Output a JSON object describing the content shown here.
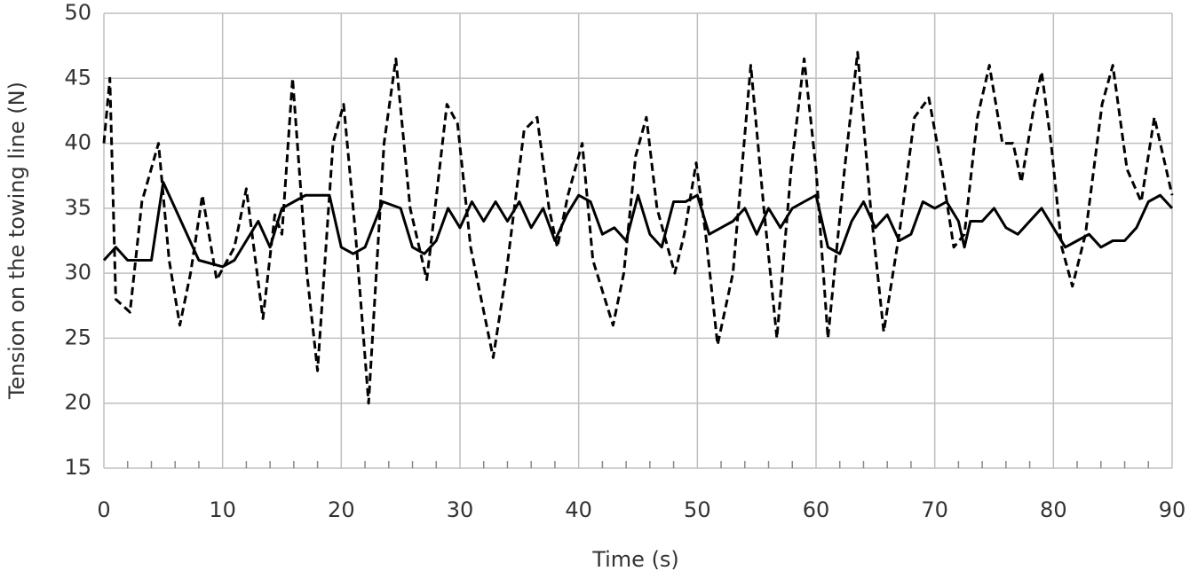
{
  "chart_data": {
    "type": "line",
    "xlabel": "Time (s)",
    "ylabel": "Tension on the towing line (N)",
    "xlim": [
      0,
      90
    ],
    "ylim": [
      15,
      50
    ],
    "xticks": [
      0,
      10,
      20,
      30,
      40,
      50,
      60,
      70,
      80,
      90
    ],
    "xminorticks": [
      2,
      4,
      6,
      8,
      12,
      14,
      16,
      18,
      22,
      24,
      26,
      28,
      32,
      34,
      36,
      38,
      42,
      44,
      46,
      48,
      52,
      54,
      56,
      58,
      62,
      64,
      66,
      68,
      72,
      74,
      76,
      78,
      82,
      84,
      86,
      88
    ],
    "yticks": [
      15,
      20,
      25,
      30,
      35,
      40,
      45,
      50
    ],
    "grid": true,
    "series": [
      {
        "color": "#000000",
        "line_style": "dashed",
        "x": [
          0,
          0.5,
          1,
          2.2,
          3.2,
          4.6,
          5.5,
          6.4,
          7.3,
          8.3,
          9.5,
          11,
          12,
          13.4,
          14.4,
          15,
          15.9,
          17.1,
          18,
          19.3,
          20.2,
          21.2,
          22.3,
          23.6,
          24.6,
          25.8,
          27.2,
          27.9,
          28.9,
          29.8,
          30.9,
          32.8,
          33.9,
          35.4,
          36.5,
          37.5,
          38.2,
          39.1,
          40.3,
          41.2,
          42.9,
          43.8,
          44.8,
          45.7,
          46.6,
          48.1,
          48.9,
          49.9,
          50.7,
          51.7,
          53,
          54.5,
          55.6,
          56.7,
          57.9,
          59,
          60,
          61,
          62.4,
          63.5,
          64.6,
          65.7,
          67,
          68.3,
          69.5,
          70.6,
          71.6,
          72.5,
          73.6,
          74.6,
          75.7,
          76.6,
          77.3,
          78.4,
          79,
          79.8,
          80.7,
          81.6,
          82.7,
          84.1,
          85,
          86.2,
          87.4,
          88.5,
          90
        ],
        "values": [
          40,
          45,
          28,
          27,
          35.5,
          40,
          31,
          26,
          30,
          36,
          29.5,
          32,
          36.5,
          26.5,
          34.5,
          33,
          45,
          30,
          22.5,
          40,
          43,
          33,
          20,
          40,
          46.5,
          35,
          29.5,
          35,
          43,
          41.5,
          32,
          23.5,
          30,
          41,
          42,
          35,
          32,
          36,
          40,
          31,
          26,
          30,
          39,
          42,
          35,
          30,
          33,
          38.5,
          33,
          24.5,
          30,
          46,
          35,
          25,
          38,
          46.5,
          38,
          25,
          38,
          47,
          35,
          25.5,
          33,
          42,
          43.5,
          38,
          32,
          33,
          42,
          46,
          40,
          40,
          37,
          43,
          45.5,
          40,
          32,
          29,
          33,
          43,
          46,
          38,
          35.5,
          42,
          36
        ]
      },
      {
        "color": "#000000",
        "line_style": "solid",
        "x": [
          0,
          1,
          2,
          4,
          5,
          7,
          8,
          10,
          11,
          13,
          14,
          15,
          16,
          17,
          19,
          20,
          21,
          22,
          23.5,
          25,
          26,
          27,
          28,
          29,
          30,
          31,
          32,
          33,
          34,
          35,
          36,
          37,
          38,
          39,
          40,
          41,
          42,
          43,
          44,
          45,
          46,
          47,
          48,
          49,
          50,
          51,
          53,
          54,
          55,
          56,
          57,
          58,
          59,
          60,
          61,
          62,
          63,
          64,
          65,
          66,
          67,
          68,
          69,
          70,
          71,
          72,
          72.5,
          73,
          74,
          75,
          76,
          77,
          78,
          79,
          80,
          81,
          82,
          83,
          84,
          85,
          86,
          87,
          88,
          89,
          90
        ],
        "values": [
          31,
          32,
          31,
          31,
          37,
          33,
          31,
          30.5,
          31,
          34,
          32,
          35,
          35.5,
          36,
          36,
          32,
          31.5,
          32,
          35.5,
          35,
          32,
          31.5,
          32.5,
          35,
          33.5,
          35.5,
          34,
          35.5,
          34,
          35.5,
          33.5,
          35,
          32.5,
          34.5,
          36,
          35.5,
          33,
          33.5,
          32.5,
          36,
          33,
          32,
          35.5,
          35.5,
          36,
          33,
          34,
          35,
          33,
          35,
          33.5,
          35,
          35.5,
          36,
          32,
          31.5,
          34,
          35.5,
          33.5,
          34.5,
          32.5,
          33,
          35.5,
          35,
          35.5,
          34,
          32,
          34,
          34,
          35,
          33.5,
          33,
          34,
          35,
          33.5,
          32,
          32.5,
          33,
          32,
          32.5,
          32.5,
          33.5,
          35.5,
          36,
          35
        ]
      }
    ]
  }
}
